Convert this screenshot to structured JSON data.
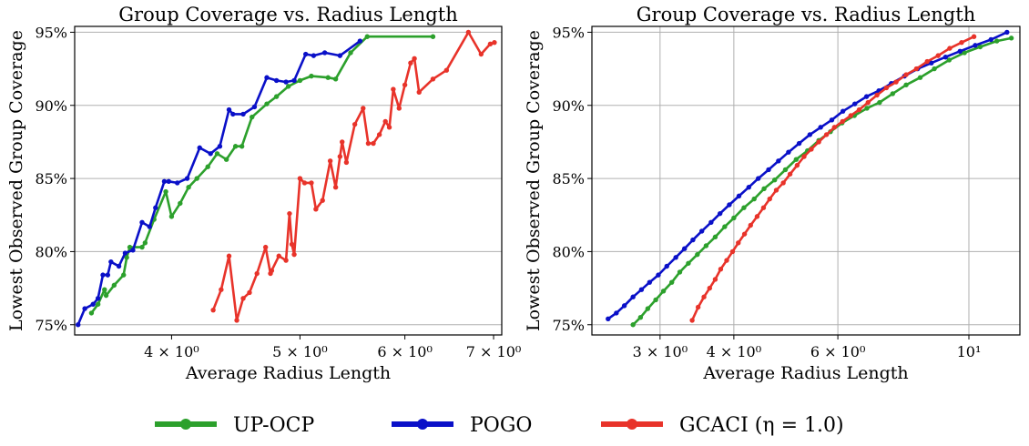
{
  "chart_data": [
    {
      "type": "line",
      "title": "Group Coverage vs. Radius Length",
      "xlabel": "Average Radius Length",
      "ylabel": "Lowest Observed Group Coverage",
      "xscale": "log",
      "xlim": [
        3.38,
        7.1
      ],
      "ylim": [
        74.3,
        95.4
      ],
      "xticks": [
        4,
        5,
        6,
        7
      ],
      "xticklabels": [
        "4 × 10⁰",
        "5 × 10⁰",
        "6 × 10⁰",
        "7 × 10⁰"
      ],
      "yticks": [
        75,
        80,
        85,
        90,
        95
      ],
      "yticklabels": [
        "75%",
        "80%",
        "85%",
        "90%",
        "95%"
      ],
      "grid": "horizontal",
      "series": [
        {
          "name": "UP-OCP",
          "color": "#2ca02c",
          "x": [
            3.48,
            3.52,
            3.56,
            3.57,
            3.62,
            3.68,
            3.7,
            3.72,
            3.8,
            3.82,
            3.88,
            3.96,
            4.0,
            4.06,
            4.12,
            4.18,
            4.26,
            4.33,
            4.4,
            4.47,
            4.52,
            4.6,
            4.72,
            4.8,
            4.9,
            5.0,
            5.1,
            5.25,
            5.32,
            5.46,
            5.62,
            6.3
          ],
          "y": [
            75.8,
            76.4,
            77.4,
            77.0,
            77.7,
            78.4,
            79.6,
            80.3,
            80.3,
            80.6,
            82.2,
            84.1,
            82.4,
            83.3,
            84.4,
            85.0,
            85.8,
            86.7,
            86.3,
            87.2,
            87.2,
            89.2,
            90.1,
            90.6,
            91.3,
            91.7,
            92.0,
            91.9,
            91.8,
            93.6,
            94.7,
            94.7
          ]
        },
        {
          "name": "POGO",
          "color": "#0a10c8",
          "x": [
            3.4,
            3.44,
            3.49,
            3.52,
            3.55,
            3.58,
            3.6,
            3.65,
            3.69,
            3.74,
            3.8,
            3.85,
            3.89,
            3.95,
            3.98,
            4.04,
            4.11,
            4.2,
            4.28,
            4.35,
            4.42,
            4.45,
            4.53,
            4.62,
            4.72,
            4.8,
            4.88,
            4.95,
            5.05,
            5.12,
            5.22,
            5.36,
            5.55
          ],
          "y": [
            75.0,
            76.1,
            76.4,
            76.8,
            78.4,
            78.4,
            79.3,
            79.0,
            79.9,
            80.1,
            82.0,
            81.7,
            83.0,
            84.8,
            84.8,
            84.7,
            85.0,
            87.1,
            86.7,
            87.2,
            89.7,
            89.4,
            89.4,
            89.9,
            91.9,
            91.7,
            91.6,
            91.7,
            93.5,
            93.4,
            93.6,
            93.4,
            94.4
          ]
        },
        {
          "name": "GCACI (η = 1.0)",
          "color": "#e8332a",
          "x": [
            4.3,
            4.36,
            4.42,
            4.48,
            4.53,
            4.58,
            4.64,
            4.71,
            4.75,
            4.76,
            4.82,
            4.88,
            4.91,
            4.93,
            4.95,
            5.0,
            5.04,
            5.1,
            5.14,
            5.2,
            5.27,
            5.32,
            5.36,
            5.38,
            5.42,
            5.5,
            5.58,
            5.63,
            5.68,
            5.74,
            5.8,
            5.84,
            5.88,
            5.94,
            6.0,
            6.06,
            6.1,
            6.15,
            6.3,
            6.45,
            6.7,
            6.85,
            6.96,
            7.01
          ],
          "y": [
            76.0,
            77.4,
            79.7,
            75.3,
            76.8,
            77.2,
            78.5,
            80.3,
            78.5,
            78.7,
            79.7,
            79.4,
            82.6,
            80.5,
            79.8,
            85.0,
            84.7,
            84.7,
            82.9,
            83.5,
            86.2,
            84.4,
            86.5,
            87.5,
            86.1,
            88.7,
            89.8,
            87.4,
            87.4,
            88.0,
            88.9,
            88.5,
            91.1,
            89.8,
            91.4,
            92.9,
            93.2,
            90.9,
            91.8,
            92.4,
            95.0,
            93.5,
            94.2,
            94.3
          ]
        }
      ]
    },
    {
      "type": "line",
      "title": "Group Coverage vs. Radius Length",
      "xlabel": "Average Radius Length",
      "ylabel": "Lowest Observed Group Coverage",
      "xscale": "log",
      "xlim": [
        2.3,
        12.2
      ],
      "ylim": [
        74.3,
        95.4
      ],
      "xticks": [
        3,
        4,
        6,
        10
      ],
      "xticklabels": [
        "3 × 10⁰",
        "4 × 10⁰",
        "6 × 10⁰",
        "10¹"
      ],
      "yticks": [
        75,
        80,
        85,
        90,
        95
      ],
      "yticklabels": [
        "75%",
        "80%",
        "85%",
        "90%",
        "95%"
      ],
      "grid": "both",
      "series": [
        {
          "name": "UP-OCP",
          "color": "#2ca02c",
          "x": [
            2.7,
            2.78,
            2.86,
            2.95,
            3.04,
            3.14,
            3.24,
            3.35,
            3.47,
            3.59,
            3.72,
            3.86,
            4.0,
            4.16,
            4.33,
            4.5,
            4.69,
            4.89,
            5.1,
            5.33,
            5.57,
            5.83,
            6.1,
            6.4,
            6.72,
            7.06,
            7.43,
            7.83,
            8.27,
            8.74,
            9.26,
            9.83,
            10.45,
            11.15,
            11.8
          ],
          "y": [
            75.0,
            75.5,
            76.1,
            76.7,
            77.3,
            77.9,
            78.6,
            79.2,
            79.8,
            80.4,
            81.0,
            81.7,
            82.3,
            83.0,
            83.6,
            84.3,
            84.9,
            85.6,
            86.3,
            86.9,
            87.6,
            88.2,
            88.8,
            89.3,
            89.8,
            90.2,
            90.8,
            91.4,
            91.9,
            92.5,
            93.1,
            93.6,
            94.0,
            94.4,
            94.6
          ]
        },
        {
          "name": "POGO",
          "color": "#0a10c8",
          "x": [
            2.45,
            2.53,
            2.61,
            2.7,
            2.79,
            2.88,
            2.98,
            3.08,
            3.19,
            3.3,
            3.41,
            3.53,
            3.66,
            3.79,
            3.93,
            4.08,
            4.24,
            4.4,
            4.58,
            4.76,
            4.95,
            5.16,
            5.38,
            5.61,
            5.86,
            6.12,
            6.41,
            6.71,
            7.04,
            7.39,
            7.78,
            8.19,
            8.64,
            9.13,
            9.66,
            10.25,
            10.9,
            11.6
          ],
          "y": [
            75.4,
            75.8,
            76.3,
            76.9,
            77.4,
            77.9,
            78.4,
            79.0,
            79.6,
            80.2,
            80.8,
            81.4,
            82.0,
            82.6,
            83.2,
            83.8,
            84.4,
            85.0,
            85.6,
            86.2,
            86.8,
            87.4,
            88.0,
            88.5,
            89.0,
            89.6,
            90.1,
            90.6,
            91.0,
            91.5,
            92.0,
            92.5,
            92.9,
            93.3,
            93.7,
            94.1,
            94.5,
            95.0
          ]
        },
        {
          "name": "GCACI (η = 1.0)",
          "color": "#e8332a",
          "x": [
            3.4,
            3.48,
            3.56,
            3.64,
            3.72,
            3.8,
            3.89,
            3.98,
            4.07,
            4.17,
            4.27,
            4.38,
            4.49,
            4.6,
            4.72,
            4.85,
            4.98,
            5.12,
            5.26,
            5.41,
            5.57,
            5.74,
            5.92,
            6.11,
            6.31,
            6.52,
            6.75,
            6.99,
            7.25,
            7.53,
            7.83,
            8.15,
            8.5,
            8.87,
            9.28,
            9.72,
            10.2
          ],
          "y": [
            75.3,
            76.2,
            76.9,
            77.5,
            78.1,
            78.8,
            79.4,
            80.0,
            80.6,
            81.2,
            81.8,
            82.4,
            83.0,
            83.6,
            84.2,
            84.7,
            85.3,
            85.9,
            86.5,
            87.0,
            87.5,
            88.0,
            88.5,
            88.9,
            89.3,
            89.7,
            90.2,
            90.7,
            91.2,
            91.6,
            92.1,
            92.5,
            93.0,
            93.4,
            93.9,
            94.3,
            94.7
          ]
        }
      ]
    }
  ],
  "legend": {
    "placement": "bottom-center",
    "items": [
      {
        "label": "UP-OCP",
        "color": "#2ca02c"
      },
      {
        "label": "POGO",
        "color": "#0a10c8"
      },
      {
        "label": "GCACI (η = 1.0)",
        "color": "#e8332a"
      }
    ]
  }
}
